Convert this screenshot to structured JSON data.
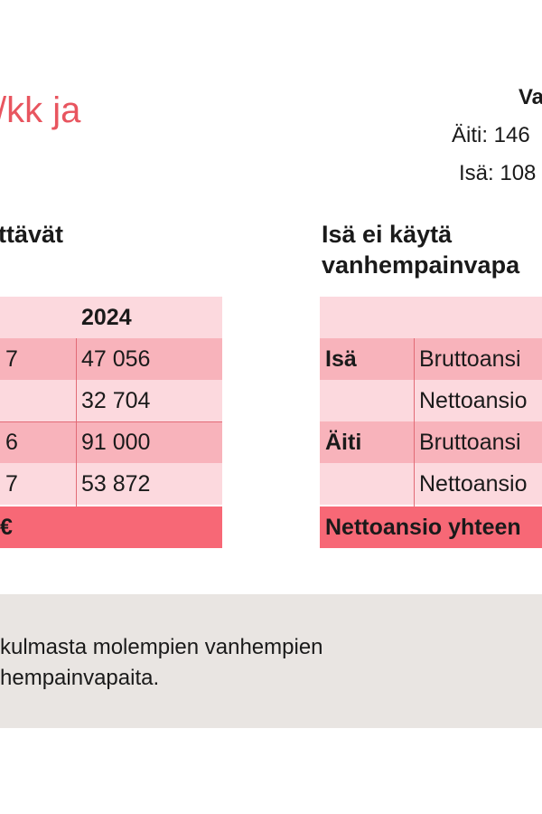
{
  "title_fragment": "/kk ja",
  "info": {
    "title": "Va",
    "lines": [
      "Äiti: 146",
      "Isä: 108"
    ]
  },
  "left": {
    "heading": "ttävät",
    "header_year": "2024",
    "rows": [
      {
        "a": "7",
        "b": "47 056"
      },
      {
        "a": "",
        "b": "32 704"
      },
      {
        "a": "6",
        "b": "91 000"
      },
      {
        "a": "7",
        "b": "53 872"
      }
    ],
    "total": "€"
  },
  "right": {
    "heading_lines": [
      "Isä ei käytä",
      "vanhempainvapa"
    ],
    "rows": [
      {
        "who": "Isä",
        "what": "Bruttoansi"
      },
      {
        "who": "",
        "what": "Nettoansio"
      },
      {
        "who": "Äiti",
        "what": "Bruttoansi"
      },
      {
        "who": "",
        "what": "Nettoansio"
      }
    ],
    "total": "Nettoansio yhteen"
  },
  "note": {
    "lines": [
      "kulmasta molempien vanhempien",
      "hempainvapaita."
    ]
  }
}
